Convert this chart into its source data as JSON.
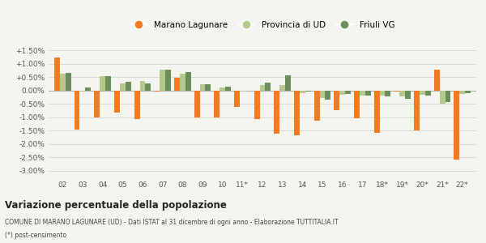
{
  "years": [
    "02",
    "03",
    "04",
    "05",
    "06",
    "07",
    "08",
    "09",
    "10",
    "11*",
    "12",
    "13",
    "14",
    "15",
    "16",
    "17",
    "18*",
    "19*",
    "20*",
    "21*",
    "22*"
  ],
  "marano": [
    1.25,
    -1.45,
    -1.0,
    -0.82,
    -1.07,
    -0.05,
    0.47,
    -1.0,
    -1.02,
    -0.62,
    -1.08,
    -1.6,
    -1.68,
    -1.12,
    -0.73,
    -1.05,
    -1.58,
    -0.05,
    -1.5,
    0.78,
    -2.58
  ],
  "provincia": [
    0.63,
    -0.05,
    0.53,
    0.28,
    0.35,
    0.78,
    0.64,
    0.22,
    0.1,
    -0.05,
    0.2,
    0.2,
    -0.1,
    -0.28,
    -0.15,
    -0.2,
    -0.2,
    -0.22,
    -0.15,
    -0.5,
    -0.12
  ],
  "friuli": [
    0.65,
    0.1,
    0.54,
    0.33,
    0.28,
    0.78,
    0.68,
    0.23,
    0.15,
    -0.02,
    0.3,
    0.58,
    -0.05,
    -0.35,
    -0.12,
    -0.2,
    -0.22,
    -0.3,
    -0.2,
    -0.42,
    -0.1
  ],
  "color_marano": "#f47920",
  "color_provincia": "#b5c98e",
  "color_friuli": "#6b8e5a",
  "title": "Variazione percentuale della popolazione",
  "legend_labels": [
    "Marano Lagunare",
    "Provincia di UD",
    "Friuli VG"
  ],
  "source_line1": "COMUNE DI MARANO LAGUNARE (UD) - Dati ISTAT al 31 dicembre di ogni anno - Elaborazione TUTTITALIA.IT",
  "source_line2": "(*) post-censimento",
  "ylim": [
    -3.25,
    1.75
  ],
  "yticks": [
    -3.0,
    -2.5,
    -2.0,
    -1.5,
    -1.0,
    -0.5,
    0.0,
    0.5,
    1.0,
    1.5
  ],
  "ytick_labels": [
    "-3.00%",
    "-2.50%",
    "-2.00%",
    "-1.50%",
    "-1.00%",
    "-0.50%",
    "0.00%",
    "+0.50%",
    "+1.00%",
    "+1.50%"
  ],
  "bg_color": "#f5f5f0",
  "bar_width": 0.28
}
